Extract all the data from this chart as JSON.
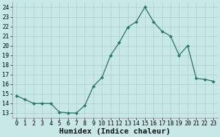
{
  "x": [
    0,
    1,
    2,
    3,
    4,
    5,
    6,
    7,
    8,
    9,
    10,
    11,
    12,
    13,
    14,
    15,
    16,
    17,
    18,
    19,
    20,
    21,
    22,
    23
  ],
  "y": [
    14.8,
    14.4,
    14.0,
    14.0,
    14.0,
    13.1,
    13.0,
    13.0,
    13.8,
    15.8,
    16.7,
    19.0,
    20.3,
    21.9,
    22.5,
    24.0,
    22.5,
    21.5,
    21.0,
    19.0,
    20.0,
    16.6,
    16.5,
    16.3
  ],
  "line_color": "#2d7a6a",
  "marker": "D",
  "marker_size": 2.2,
  "bg_color": "#c8e8e8",
  "grid_color": "#a8cccc",
  "xlabel": "Humidex (Indice chaleur)",
  "xlim": [
    -0.5,
    23.5
  ],
  "ylim": [
    12.5,
    24.5
  ],
  "yticks": [
    13,
    14,
    15,
    16,
    17,
    18,
    19,
    20,
    21,
    22,
    23,
    24
  ],
  "xticks": [
    0,
    1,
    2,
    3,
    4,
    5,
    6,
    7,
    8,
    9,
    10,
    11,
    12,
    13,
    14,
    15,
    16,
    17,
    18,
    19,
    20,
    21,
    22,
    23
  ],
  "tick_label_size": 6.0,
  "xlabel_size": 8.0,
  "linewidth": 1.0
}
